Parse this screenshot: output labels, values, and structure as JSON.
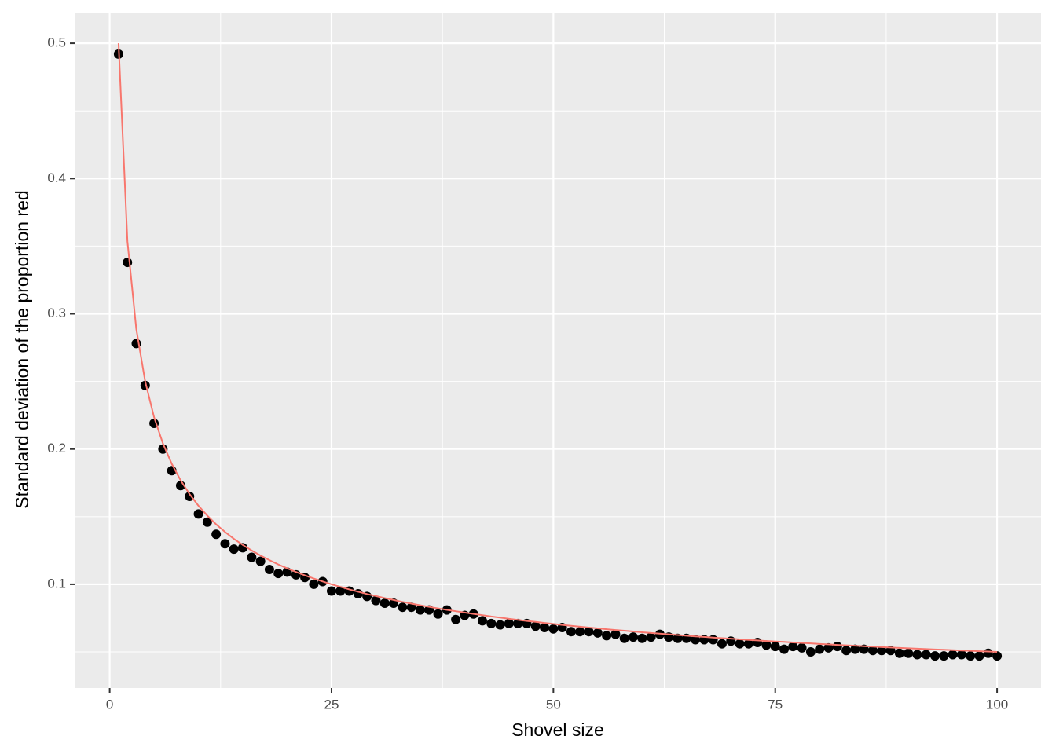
{
  "chart_data": {
    "type": "scatter",
    "xlabel": "Shovel size",
    "ylabel": "Standard deviation of the proportion red",
    "x": [
      1,
      2,
      3,
      4,
      5,
      6,
      7,
      8,
      9,
      10,
      11,
      12,
      13,
      14,
      15,
      16,
      17,
      18,
      19,
      20,
      21,
      22,
      23,
      24,
      25,
      26,
      27,
      28,
      29,
      30,
      31,
      32,
      33,
      34,
      35,
      36,
      37,
      38,
      39,
      40,
      41,
      42,
      43,
      44,
      45,
      46,
      47,
      48,
      49,
      50,
      51,
      52,
      53,
      54,
      55,
      56,
      57,
      58,
      59,
      60,
      61,
      62,
      63,
      64,
      65,
      66,
      67,
      68,
      69,
      70,
      71,
      72,
      73,
      74,
      75,
      76,
      77,
      78,
      79,
      80,
      81,
      82,
      83,
      84,
      85,
      86,
      87,
      88,
      89,
      90,
      91,
      92,
      93,
      94,
      95,
      96,
      97,
      98,
      99,
      100
    ],
    "series": [
      {
        "type": "scatter",
        "color": "#000000",
        "values": [
          0.492,
          0.338,
          0.278,
          0.247,
          0.219,
          0.2,
          0.184,
          0.173,
          0.165,
          0.152,
          0.146,
          0.137,
          0.13,
          0.126,
          0.127,
          0.12,
          0.117,
          0.111,
          0.108,
          0.109,
          0.107,
          0.105,
          0.1,
          0.102,
          0.095,
          0.095,
          0.095,
          0.093,
          0.091,
          0.088,
          0.086,
          0.086,
          0.083,
          0.083,
          0.081,
          0.081,
          0.078,
          0.081,
          0.074,
          0.077,
          0.078,
          0.073,
          0.071,
          0.07,
          0.071,
          0.071,
          0.071,
          0.069,
          0.068,
          0.067,
          0.068,
          0.065,
          0.065,
          0.065,
          0.064,
          0.062,
          0.063,
          0.06,
          0.061,
          0.06,
          0.061,
          0.063,
          0.061,
          0.06,
          0.06,
          0.059,
          0.059,
          0.059,
          0.056,
          0.058,
          0.056,
          0.056,
          0.057,
          0.055,
          0.054,
          0.052,
          0.054,
          0.053,
          0.05,
          0.052,
          0.053,
          0.054,
          0.051,
          0.052,
          0.052,
          0.051,
          0.051,
          0.051,
          0.049,
          0.049,
          0.048,
          0.048,
          0.047,
          0.047,
          0.048,
          0.048,
          0.047,
          0.047,
          0.049,
          0.047
        ]
      },
      {
        "type": "line",
        "color": "#F8766D",
        "values": [
          0.5,
          0.3536,
          0.2887,
          0.25,
          0.2236,
          0.2041,
          0.189,
          0.1768,
          0.1667,
          0.1581,
          0.1508,
          0.1443,
          0.1387,
          0.1336,
          0.1291,
          0.125,
          0.1213,
          0.1179,
          0.1147,
          0.1118,
          0.1091,
          0.1066,
          0.1043,
          0.1021,
          0.1,
          0.0981,
          0.0962,
          0.0945,
          0.0928,
          0.0913,
          0.0898,
          0.0884,
          0.087,
          0.0857,
          0.0845,
          0.0833,
          0.0822,
          0.0811,
          0.0801,
          0.0791,
          0.0781,
          0.0772,
          0.0762,
          0.0754,
          0.0745,
          0.0737,
          0.0729,
          0.0722,
          0.0714,
          0.0707,
          0.07,
          0.0693,
          0.0687,
          0.068,
          0.0674,
          0.0668,
          0.0662,
          0.0657,
          0.0651,
          0.0645,
          0.064,
          0.0635,
          0.063,
          0.0625,
          0.062,
          0.0615,
          0.0611,
          0.0606,
          0.0602,
          0.0598,
          0.0593,
          0.0589,
          0.0585,
          0.0581,
          0.0577,
          0.0574,
          0.057,
          0.0566,
          0.0563,
          0.0559,
          0.0556,
          0.0552,
          0.0549,
          0.0546,
          0.0542,
          0.0539,
          0.0536,
          0.0533,
          0.053,
          0.0527,
          0.0524,
          0.0521,
          0.0518,
          0.0516,
          0.0513,
          0.051,
          0.0508,
          0.0505,
          0.0503,
          0.05
        ]
      }
    ],
    "xlim": [
      -3.95,
      104.95
    ],
    "xticks": [
      0,
      25,
      50,
      75,
      100
    ],
    "x_minor_ticks": [
      12.5,
      37.5,
      62.5,
      87.5
    ],
    "ylim": [
      0.0233,
      0.5227
    ],
    "yticks": [
      0.1,
      0.2,
      0.3,
      0.4,
      0.5
    ],
    "y_minor_ticks": [
      0.05,
      0.15,
      0.25,
      0.35,
      0.45
    ],
    "grid": true,
    "background": "#EBEBEB"
  }
}
